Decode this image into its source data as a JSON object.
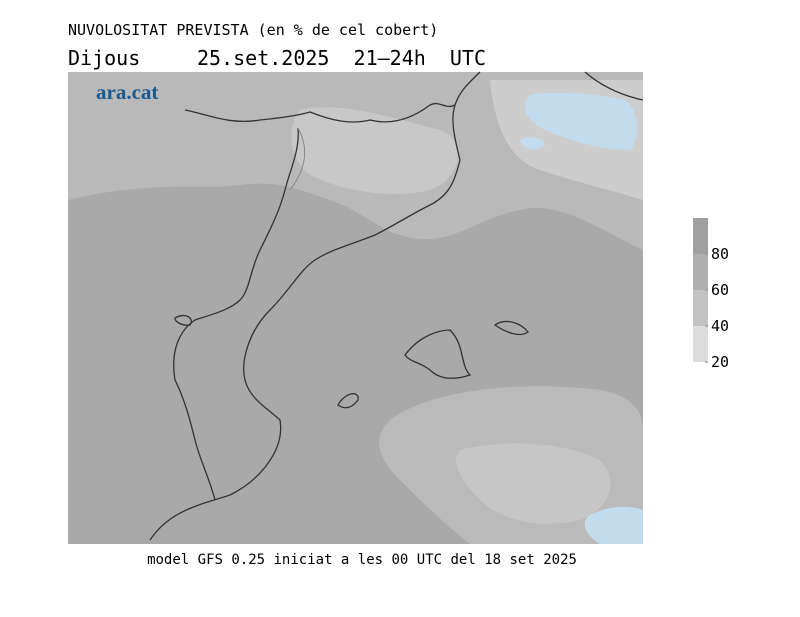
{
  "header": {
    "title": "NUVOLOSITAT PREVISTA (en % de cel cobert)",
    "day": "Dijous",
    "datetime": "25.set.2025  21–24h  UTC"
  },
  "logo": "ara.cat",
  "footer": "model GFS 0.25 iniciat a les 00 UTC del 18 set 2025",
  "colorbar": {
    "range": [
      20,
      100
    ],
    "ticks": [
      20,
      40,
      60,
      80
    ],
    "colors": [
      "#dcdcdc",
      "#c2c2c2",
      "#afafaf",
      "#a0a0a0"
    ]
  }
}
